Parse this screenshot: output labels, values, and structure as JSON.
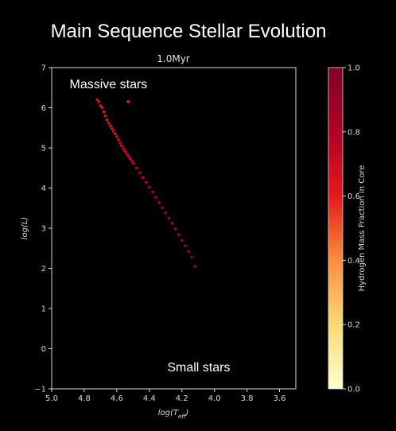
{
  "chart_data": {
    "type": "scatter",
    "title": "Main Sequence Stellar Evolution",
    "subtitle": "1.0Myr",
    "xlabel_base": "log(T",
    "xlabel_sub": "eff",
    "xlabel_end": ")",
    "ylabel": "log(L)",
    "xlim": [
      5.0,
      3.5
    ],
    "ylim": [
      -1,
      7
    ],
    "x_ticks": [
      "5.0",
      "4.8",
      "4.6",
      "4.4",
      "4.2",
      "4.0",
      "3.8",
      "3.6"
    ],
    "y_ticks": [
      "−1",
      "0",
      "1",
      "2",
      "3",
      "4",
      "5",
      "6",
      "7"
    ],
    "annotations": [
      {
        "text": "Massive stars",
        "x": 4.89,
        "y": 6.6
      },
      {
        "text": "Small stars",
        "x": 4.29,
        "y": -0.45
      }
    ],
    "colorbar": {
      "label": "Hydrogen Mass Fraction in Core",
      "range": [
        0.0,
        1.0
      ],
      "ticks": [
        "0.0",
        "0.2",
        "0.4",
        "0.6",
        "0.8",
        "1.0"
      ]
    },
    "x": [
      4.72,
      4.71,
      4.7,
      4.69,
      4.68,
      4.67,
      4.66,
      4.65,
      4.64,
      4.63,
      4.62,
      4.61,
      4.6,
      4.59,
      4.58,
      4.57,
      4.56,
      4.55,
      4.54,
      4.53,
      4.52,
      4.51,
      4.5,
      4.48,
      4.46,
      4.44,
      4.42,
      4.4,
      4.38,
      4.36,
      4.34,
      4.32,
      4.3,
      4.28,
      4.26,
      4.24,
      4.22,
      4.2,
      4.18,
      4.16,
      4.14,
      4.12,
      4.53
    ],
    "y": [
      6.2,
      6.15,
      6.05,
      6.0,
      5.9,
      5.8,
      5.7,
      5.62,
      5.55,
      5.48,
      5.42,
      5.35,
      5.28,
      5.2,
      5.12,
      5.05,
      4.98,
      4.92,
      4.86,
      4.8,
      4.74,
      4.68,
      4.62,
      4.5,
      4.38,
      4.26,
      4.14,
      4.02,
      3.9,
      3.77,
      3.64,
      3.51,
      3.38,
      3.25,
      3.12,
      2.98,
      2.84,
      2.7,
      2.56,
      2.42,
      2.28,
      2.05,
      6.15
    ],
    "h_fraction": [
      0.72,
      0.68,
      0.65,
      0.7,
      0.62,
      0.66,
      0.6,
      0.7,
      0.64,
      0.68,
      0.72,
      0.66,
      0.74,
      0.7,
      0.76,
      0.72,
      0.78,
      0.74,
      0.8,
      0.76,
      0.78,
      0.82,
      0.8,
      0.82,
      0.84,
      0.83,
      0.85,
      0.86,
      0.86,
      0.87,
      0.87,
      0.88,
      0.88,
      0.88,
      0.89,
      0.89,
      0.89,
      0.9,
      0.9,
      0.9,
      0.91,
      0.92,
      0.6
    ]
  }
}
